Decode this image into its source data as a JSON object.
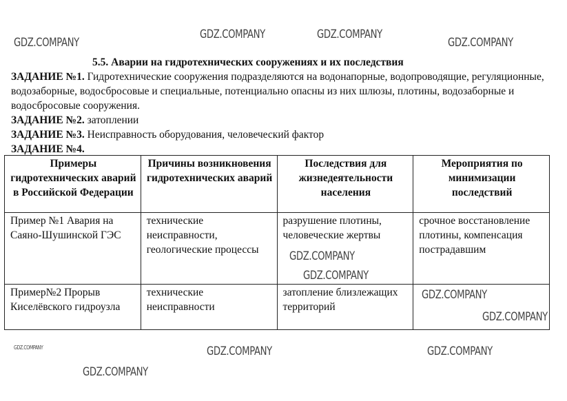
{
  "watermark": "GDZ.COMPANY",
  "title": "5.5. Аварии на гидротехнических сооружениях и их последствия",
  "tasks": [
    {
      "label": "ЗАДАНИЕ №1.",
      "text": " Гидротехнические сооружения подразделяются на водонапорные, водопроводящие, регуляционные, водозаборные, водосбросовые и специальные, потенциально опасны из них шлюзы, плотины, водозаборные и водосбросовые сооружения."
    },
    {
      "label": "ЗАДАНИЕ №2.",
      "text": " затоплении"
    },
    {
      "label": "ЗАДАНИЕ №3.",
      "text": " Неисправность оборудования, человеческий фактор"
    },
    {
      "label": "ЗАДАНИЕ №4.",
      "text": ""
    }
  ],
  "table": {
    "headers": [
      "Примеры гидротехнических аварий в Российской Федерации",
      "Причины возникновения гидротехнических аварий",
      "Последствия для жизнедеятельности населения",
      "Мероприятия по минимизации последствий"
    ],
    "rows": [
      [
        "Пример №1 Авария на Саяно-Шушинской ГЭС",
        "технические неисправности, геологические процессы",
        "разрушение плотины, человеческие жертвы",
        "срочное восстановление плотины, компенсация пострадавшим"
      ],
      [
        "Пример№2 Прорыв Киселёвского гидроузла",
        "технические неисправности",
        "затопление близлежащих территорий",
        ""
      ]
    ]
  }
}
